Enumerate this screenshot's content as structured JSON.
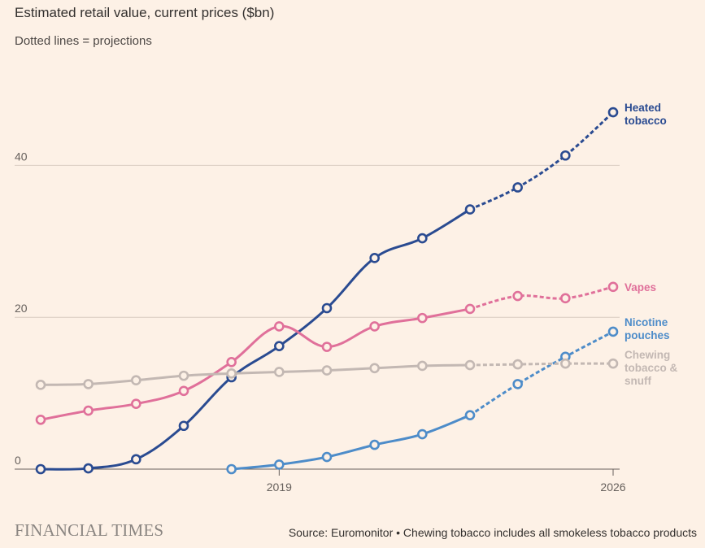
{
  "header": {
    "title": "Estimated retail value, current prices ($bn)",
    "subtitle": "Dotted lines = projections"
  },
  "footer": {
    "brand": "FINANCIAL TIMES",
    "source": "Source: Euromonitor • Chewing tobacco includes all smokeless tobacco products"
  },
  "chart_data": {
    "type": "line",
    "title": "Estimated retail value, current prices ($bn)",
    "subtitle": "Dotted lines = projections",
    "xlim": [
      2014,
      2026
    ],
    "ylim": [
      0,
      50
    ],
    "x_ticks": [
      2019,
      2026
    ],
    "y_ticks": [
      0,
      20,
      40
    ],
    "grid": true,
    "legend": "inline labels at right end of lines",
    "projection_start": 2023,
    "series": [
      {
        "name": "Heated tobacco",
        "label_lines": [
          "Heated",
          "tobacco"
        ],
        "color": "#2a4b91",
        "x": [
          2014,
          2015,
          2016,
          2017,
          2018,
          2019,
          2020,
          2021,
          2022,
          2023,
          2024,
          2025,
          2026
        ],
        "values": [
          0,
          0.1,
          1.3,
          5.7,
          12.1,
          16.2,
          21.2,
          27.8,
          30.4,
          34.2,
          37.1,
          41.3,
          47.0
        ]
      },
      {
        "name": "Vapes",
        "label_lines": [
          "Vapes"
        ],
        "color": "#e0709a",
        "x": [
          2014,
          2015,
          2016,
          2017,
          2018,
          2019,
          2020,
          2021,
          2022,
          2023,
          2024,
          2025,
          2026
        ],
        "values": [
          6.5,
          7.7,
          8.6,
          10.3,
          14.1,
          18.8,
          16.1,
          18.8,
          19.9,
          21.1,
          22.8,
          22.5,
          24.0
        ]
      },
      {
        "name": "Nicotine pouches",
        "label_lines": [
          "Nicotine",
          "pouches"
        ],
        "color": "#4d8cc9",
        "x": [
          2018,
          2019,
          2020,
          2021,
          2022,
          2023,
          2024,
          2025,
          2026
        ],
        "values": [
          0,
          0.6,
          1.6,
          3.2,
          4.6,
          7.1,
          11.2,
          14.8,
          18.1
        ]
      },
      {
        "name": "Chewing tobacco & snuff",
        "label_lines": [
          "Chewing",
          "tobacco &",
          "snuff"
        ],
        "color": "#c3b8b3",
        "x": [
          2014,
          2015,
          2016,
          2017,
          2018,
          2019,
          2020,
          2021,
          2022,
          2023,
          2024,
          2025,
          2026
        ],
        "values": [
          11.1,
          11.2,
          11.7,
          12.3,
          12.6,
          12.8,
          13.0,
          13.3,
          13.6,
          13.7,
          13.8,
          13.9,
          13.9
        ]
      }
    ]
  }
}
